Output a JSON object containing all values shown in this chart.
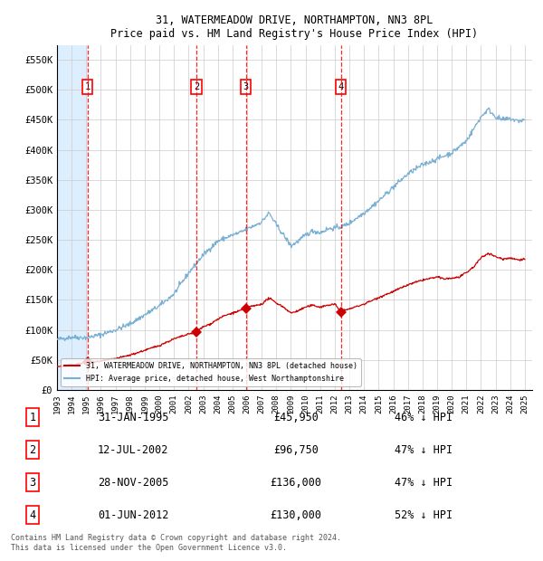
{
  "title": "31, WATERMEADOW DRIVE, NORTHAMPTON, NN3 8PL",
  "subtitle": "Price paid vs. HM Land Registry's House Price Index (HPI)",
  "ylim": [
    0,
    575000
  ],
  "yticks": [
    0,
    50000,
    100000,
    150000,
    200000,
    250000,
    300000,
    350000,
    400000,
    450000,
    500000,
    550000
  ],
  "ytick_labels": [
    "£0",
    "£50K",
    "£100K",
    "£150K",
    "£200K",
    "£250K",
    "£300K",
    "£350K",
    "£400K",
    "£450K",
    "£500K",
    "£550K"
  ],
  "xlim_start": 1993.0,
  "xlim_end": 2025.5,
  "hatch_end": 1995.08,
  "sale_dates": [
    1995.08,
    2002.53,
    2005.91,
    2012.42
  ],
  "sale_prices": [
    45950,
    96750,
    136000,
    130000
  ],
  "sale_labels": [
    "1",
    "2",
    "3",
    "4"
  ],
  "red_line_color": "#cc0000",
  "blue_line_color": "#7ab0d4",
  "hatch_color": "#ddeeff",
  "grid_color": "#cccccc",
  "legend_label_red": "31, WATERMEADOW DRIVE, NORTHAMPTON, NN3 8PL (detached house)",
  "legend_label_blue": "HPI: Average price, detached house, West Northamptonshire",
  "table_entries": [
    {
      "num": "1",
      "date": "31-JAN-1995",
      "price": "£45,950",
      "pct": "46% ↓ HPI"
    },
    {
      "num": "2",
      "date": "12-JUL-2002",
      "price": "£96,750",
      "pct": "47% ↓ HPI"
    },
    {
      "num": "3",
      "date": "28-NOV-2005",
      "price": "£136,000",
      "pct": "47% ↓ HPI"
    },
    {
      "num": "4",
      "date": "01-JUN-2012",
      "price": "£130,000",
      "pct": "52% ↓ HPI"
    }
  ],
  "footnote": "Contains HM Land Registry data © Crown copyright and database right 2024.\nThis data is licensed under the Open Government Licence v3.0."
}
